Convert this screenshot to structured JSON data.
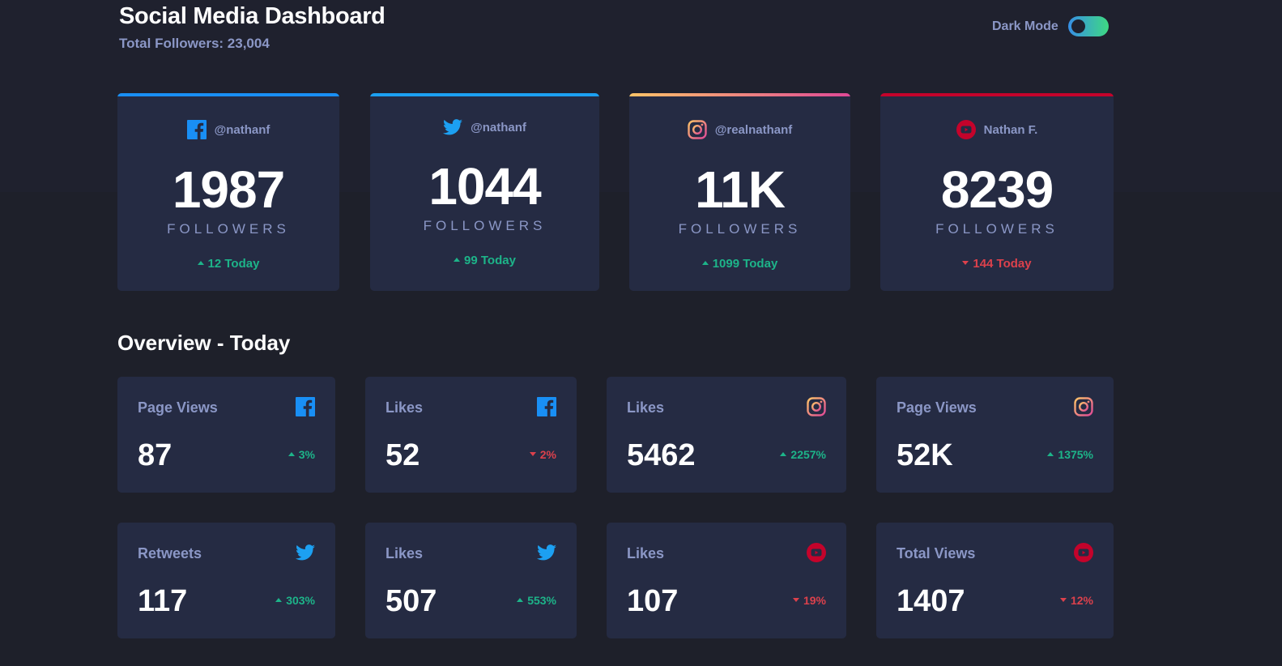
{
  "header": {
    "title": "Social Media Dashboard",
    "subtitle": "Total Followers: 23,004",
    "dark_mode_label": "Dark Mode",
    "dark_mode_on": true
  },
  "colors": {
    "facebook": "#198ff5",
    "twitter": "#1ca0f2",
    "instagram_start": "#fdc468",
    "instagram_end": "#df4996",
    "youtube": "#c4032b",
    "up": "#1db489",
    "down": "#dc414c"
  },
  "follower_cards": [
    {
      "platform_icon": "facebook-icon",
      "handle": "@nathanf",
      "count": "1987",
      "label": "FOLLOWERS",
      "change": "12 Today",
      "trend": "up"
    },
    {
      "platform_icon": "twitter-icon",
      "handle": "@nathanf",
      "count": "1044",
      "label": "FOLLOWERS",
      "change": "99 Today",
      "trend": "up"
    },
    {
      "platform_icon": "instagram-icon",
      "handle": "@realnathanf",
      "count": "11K",
      "label": "FOLLOWERS",
      "change": "1099 Today",
      "trend": "up"
    },
    {
      "platform_icon": "youtube-icon",
      "handle": "Nathan F.",
      "count": "8239",
      "label": "FOLLOWERS",
      "change": "144 Today",
      "trend": "down"
    }
  ],
  "overview": {
    "title": "Overview - Today",
    "cards": [
      {
        "label": "Page Views",
        "icon": "facebook-icon",
        "value": "87",
        "pct": "3%",
        "trend": "up"
      },
      {
        "label": "Likes",
        "icon": "facebook-icon",
        "value": "52",
        "pct": "2%",
        "trend": "down"
      },
      {
        "label": "Likes",
        "icon": "instagram-icon",
        "value": "5462",
        "pct": "2257%",
        "trend": "up"
      },
      {
        "label": "Page Views",
        "icon": "instagram-icon",
        "value": "52K",
        "pct": "1375%",
        "trend": "up"
      },
      {
        "label": "Retweets",
        "icon": "twitter-icon",
        "value": "117",
        "pct": "303%",
        "trend": "up"
      },
      {
        "label": "Likes",
        "icon": "twitter-icon",
        "value": "507",
        "pct": "553%",
        "trend": "up"
      },
      {
        "label": "Likes",
        "icon": "youtube-icon",
        "value": "107",
        "pct": "19%",
        "trend": "down"
      },
      {
        "label": "Total Views",
        "icon": "youtube-icon",
        "value": "1407",
        "pct": "12%",
        "trend": "down"
      }
    ]
  }
}
